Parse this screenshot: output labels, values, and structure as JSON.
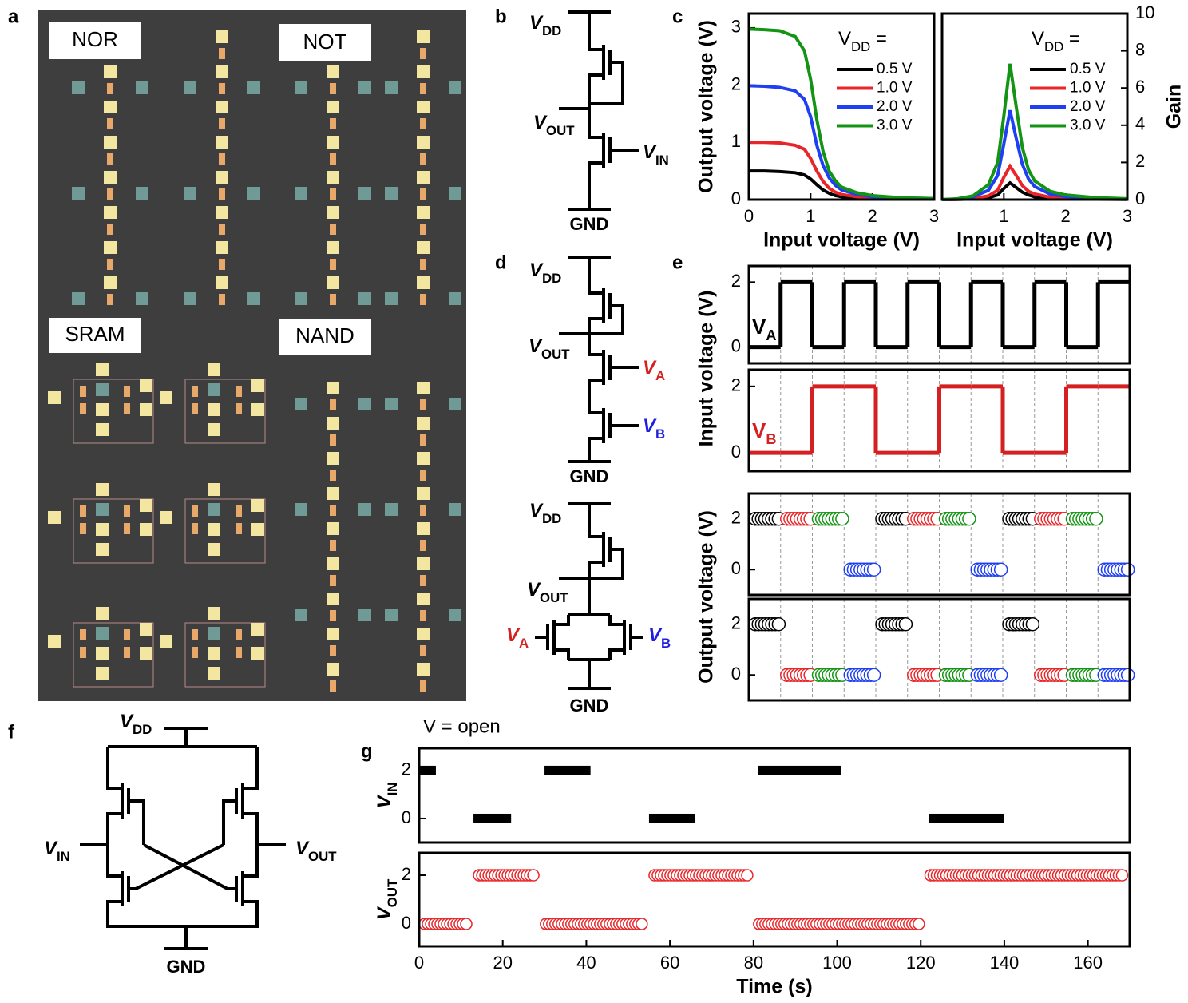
{
  "panel_labels": [
    "a",
    "b",
    "c",
    "d",
    "e",
    "f",
    "g"
  ],
  "micrograph": {
    "labels": [
      "NOR",
      "NOT",
      "SRAM",
      "NAND"
    ]
  },
  "circuits": {
    "b": [
      {
        "text": "V",
        "sub": "DD"
      },
      {
        "text": "V",
        "sub": "OUT"
      },
      {
        "text": "V",
        "sub": "IN"
      },
      {
        "text": "GND"
      }
    ],
    "d_top": [
      {
        "text": "V",
        "sub": "DD"
      },
      {
        "text": "V",
        "sub": "OUT"
      },
      {
        "text": "V",
        "sub": "A"
      },
      {
        "text": "V",
        "sub": "B"
      },
      {
        "text": "GND"
      }
    ],
    "d_bottom": [
      {
        "text": "V",
        "sub": "DD"
      },
      {
        "text": "V",
        "sub": "OUT"
      },
      {
        "text": "V",
        "sub": "A"
      },
      {
        "text": "V",
        "sub": "B"
      },
      {
        "text": "GND"
      }
    ],
    "f": [
      {
        "text": "V",
        "sub": "DD"
      },
      {
        "text": "V",
        "sub": "IN"
      },
      {
        "text": "V",
        "sub": "OUT"
      },
      {
        "text": "GND"
      }
    ]
  },
  "chart_data": [
    {
      "type": "line",
      "ylabel": "Output voltage (V)",
      "xlabel": "Input voltage (V)",
      "x": [
        0,
        0.25,
        0.5,
        0.75,
        0.9,
        1.0,
        1.1,
        1.2,
        1.3,
        1.4,
        1.5,
        1.75,
        2,
        2.5,
        3
      ],
      "xlim": [
        0,
        3
      ],
      "xticks": [
        0,
        1,
        2,
        3
      ],
      "ylim": [
        0,
        3.25
      ],
      "yticks": [
        0,
        1,
        2,
        3
      ],
      "legend_title": {
        "text": "V",
        "sub": "DD",
        "tail": " ="
      },
      "series": [
        {
          "name": "0.5 V",
          "color": "#000000",
          "values": [
            0.5,
            0.5,
            0.49,
            0.47,
            0.43,
            0.36,
            0.26,
            0.17,
            0.11,
            0.07,
            0.05,
            0.03,
            0.02,
            0.01,
            0.01
          ]
        },
        {
          "name": "1.0 V",
          "color": "#e8262a",
          "values": [
            1,
            1,
            0.99,
            0.95,
            0.88,
            0.72,
            0.5,
            0.32,
            0.2,
            0.13,
            0.09,
            0.05,
            0.03,
            0.02,
            0.01
          ]
        },
        {
          "name": "2.0 V",
          "color": "#1f3ff2",
          "values": [
            1.99,
            1.98,
            1.96,
            1.9,
            1.75,
            1.45,
            0.95,
            0.6,
            0.38,
            0.25,
            0.17,
            0.09,
            0.05,
            0.03,
            0.02
          ]
        },
        {
          "name": "3.0 V",
          "color": "#149414",
          "values": [
            2.98,
            2.97,
            2.95,
            2.85,
            2.6,
            2.1,
            1.4,
            0.85,
            0.5,
            0.33,
            0.22,
            0.12,
            0.07,
            0.03,
            0.02
          ]
        }
      ]
    },
    {
      "type": "line",
      "ylabel": "Gain",
      "xlabel": "Input voltage (V)",
      "x": [
        0,
        0.25,
        0.5,
        0.75,
        0.9,
        1.0,
        1.1,
        1.2,
        1.3,
        1.4,
        1.5,
        1.75,
        2,
        2.5,
        3
      ],
      "xlim": [
        0,
        3
      ],
      "xticks": [
        1,
        2,
        3
      ],
      "y2lim": [
        0,
        10
      ],
      "y2ticks": [
        0,
        2,
        4,
        6,
        8,
        10
      ],
      "legend_title": {
        "text": "V",
        "sub": "DD",
        "tail": " ="
      },
      "series": [
        {
          "name": "0.5 V",
          "color": "#000000",
          "axis": "y2",
          "values": [
            0,
            0.01,
            0.03,
            0.1,
            0.25,
            0.6,
            0.9,
            0.65,
            0.4,
            0.25,
            0.15,
            0.07,
            0.04,
            0.02,
            0.01
          ]
        },
        {
          "name": "1.0 V",
          "color": "#e8262a",
          "axis": "y2",
          "values": [
            0,
            0.02,
            0.06,
            0.2,
            0.5,
            1.2,
            1.8,
            1.3,
            0.75,
            0.45,
            0.3,
            0.13,
            0.07,
            0.03,
            0.02
          ]
        },
        {
          "name": "2.0 V",
          "color": "#1f3ff2",
          "axis": "y2",
          "values": [
            0,
            0.03,
            0.15,
            0.5,
            1.3,
            3,
            4.8,
            3.3,
            1.9,
            1.1,
            0.7,
            0.3,
            0.17,
            0.07,
            0.03
          ]
        },
        {
          "name": "3.0 V",
          "color": "#149414",
          "axis": "y2",
          "values": [
            0,
            0.05,
            0.2,
            0.8,
            2,
            4.5,
            7.3,
            5,
            2.8,
            1.6,
            1,
            0.45,
            0.25,
            0.1,
            0.05
          ]
        }
      ]
    },
    {
      "type": "step",
      "ylabel": "Input voltage (V)",
      "label": {
        "text": "V",
        "sub": "A"
      },
      "categories": [
        null,
        null,
        null,
        null,
        null,
        null,
        null,
        null,
        null,
        null,
        null,
        null
      ],
      "ylim": [
        -0.5,
        2.5
      ],
      "yticks": [
        0,
        2
      ],
      "series": [
        {
          "color": "#000000",
          "values": [
            0,
            2,
            0,
            2,
            0,
            2,
            0,
            2,
            0,
            2,
            0,
            2
          ]
        }
      ]
    },
    {
      "type": "step",
      "label": {
        "text": "V",
        "sub": "B"
      },
      "categories": [
        null,
        null,
        null,
        null,
        null,
        null,
        null,
        null,
        null,
        null,
        null,
        null
      ],
      "ylim": [
        -0.55,
        2.5
      ],
      "yticks": [
        0,
        2
      ],
      "series": [
        {
          "color": "#d42020",
          "values": [
            0,
            0,
            2,
            2,
            0,
            0,
            2,
            2,
            0,
            0,
            2,
            2
          ]
        }
      ]
    },
    {
      "type": "scatter",
      "ylabel": "Output voltage (V)",
      "categories": [
        null,
        null,
        null,
        null,
        null,
        null,
        null,
        null,
        null,
        null,
        null,
        null
      ],
      "ylim": [
        -1,
        3
      ],
      "yticks": [
        0,
        2
      ],
      "series": [
        {
          "color": "#000000",
          "values": [
            2,
            null,
            null,
            null,
            2,
            null,
            null,
            null,
            2,
            null,
            null,
            null
          ]
        },
        {
          "color": "#e8262a",
          "values": [
            null,
            2,
            null,
            null,
            null,
            2,
            null,
            null,
            null,
            2,
            null,
            null
          ]
        },
        {
          "color": "#149414",
          "values": [
            null,
            null,
            2,
            null,
            null,
            null,
            2,
            null,
            null,
            null,
            2,
            null
          ]
        },
        {
          "color": "#1f3ff2",
          "values": [
            null,
            null,
            null,
            0,
            null,
            null,
            null,
            0,
            null,
            null,
            null,
            0
          ]
        }
      ]
    },
    {
      "type": "scatter",
      "categories": [
        null,
        null,
        null,
        null,
        null,
        null,
        null,
        null,
        null,
        null,
        null,
        null
      ],
      "ylim": [
        -1,
        3
      ],
      "yticks": [
        0,
        2
      ],
      "series": [
        {
          "color": "#000000",
          "values": [
            2,
            null,
            null,
            null,
            2,
            null,
            null,
            null,
            2,
            null,
            null,
            null
          ]
        },
        {
          "color": "#e8262a",
          "values": [
            null,
            0,
            null,
            null,
            null,
            0,
            null,
            null,
            null,
            0,
            null,
            null
          ]
        },
        {
          "color": "#149414",
          "values": [
            null,
            null,
            0,
            null,
            null,
            null,
            0,
            null,
            null,
            null,
            0,
            null
          ]
        },
        {
          "color": "#1f3ff2",
          "values": [
            null,
            null,
            null,
            0,
            null,
            null,
            null,
            0,
            null,
            null,
            null,
            0
          ]
        }
      ]
    },
    {
      "type": "segments",
      "annotation": "V = open",
      "ylabel": {
        "text": "V",
        "sub": "IN"
      },
      "xlim": [
        0,
        170
      ],
      "ylim": [
        -1,
        2.93
      ],
      "yticks": [
        0,
        2
      ],
      "series": [
        {
          "color": "#000000",
          "start": [
            0,
            13,
            30,
            55,
            81,
            122
          ],
          "end": [
            4,
            22,
            41,
            66,
            101,
            140
          ],
          "values": [
            2,
            0,
            2,
            0,
            2,
            0
          ]
        }
      ]
    },
    {
      "type": "dot_range",
      "ylabel": {
        "text": "V",
        "sub": "OUT"
      },
      "xlabel": "Time (s)",
      "xlim": [
        0,
        170
      ],
      "xticks": [
        0,
        20,
        40,
        60,
        80,
        100,
        120,
        140,
        160
      ],
      "ylim": [
        -0.92,
        2.92
      ],
      "yticks": [
        0,
        2
      ],
      "series": [
        {
          "color": "#e8262a",
          "start": [
            0,
            13,
            29,
            55,
            80,
            121
          ],
          "end": [
            13,
            29,
            55,
            80,
            121,
            170
          ],
          "values": [
            0,
            2,
            0,
            2,
            0,
            2
          ]
        }
      ]
    }
  ]
}
